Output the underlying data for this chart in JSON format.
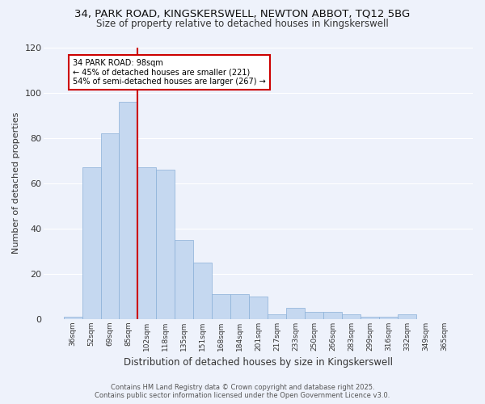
{
  "title_line1": "34, PARK ROAD, KINGSKERSWELL, NEWTON ABBOT, TQ12 5BG",
  "title_line2": "Size of property relative to detached houses in Kingskerswell",
  "xlabel": "Distribution of detached houses by size in Kingskerswell",
  "ylabel": "Number of detached properties",
  "categories": [
    "36sqm",
    "52sqm",
    "69sqm",
    "85sqm",
    "102sqm",
    "118sqm",
    "135sqm",
    "151sqm",
    "168sqm",
    "184sqm",
    "201sqm",
    "217sqm",
    "233sqm",
    "250sqm",
    "266sqm",
    "283sqm",
    "299sqm",
    "316sqm",
    "332sqm",
    "349sqm",
    "365sqm"
  ],
  "values": [
    1,
    67,
    82,
    96,
    67,
    66,
    35,
    25,
    11,
    11,
    10,
    2,
    5,
    3,
    3,
    2,
    1,
    1,
    2,
    0,
    0
  ],
  "bar_color": "#c5d8f0",
  "bar_edge_color": "#8ab0d8",
  "vline_index": 4,
  "vline_color": "#cc0000",
  "annotation_line1": "34 PARK ROAD: 98sqm",
  "annotation_line2": "← 45% of detached houses are smaller (221)",
  "annotation_line3": "54% of semi-detached houses are larger (267) →",
  "annotation_box_color": "#cc0000",
  "background_color": "#eef2fb",
  "grid_color": "#ffffff",
  "footer_line1": "Contains HM Land Registry data © Crown copyright and database right 2025.",
  "footer_line2": "Contains public sector information licensed under the Open Government Licence v3.0.",
  "ylim": [
    0,
    120
  ],
  "yticks": [
    0,
    20,
    40,
    60,
    80,
    100,
    120
  ]
}
